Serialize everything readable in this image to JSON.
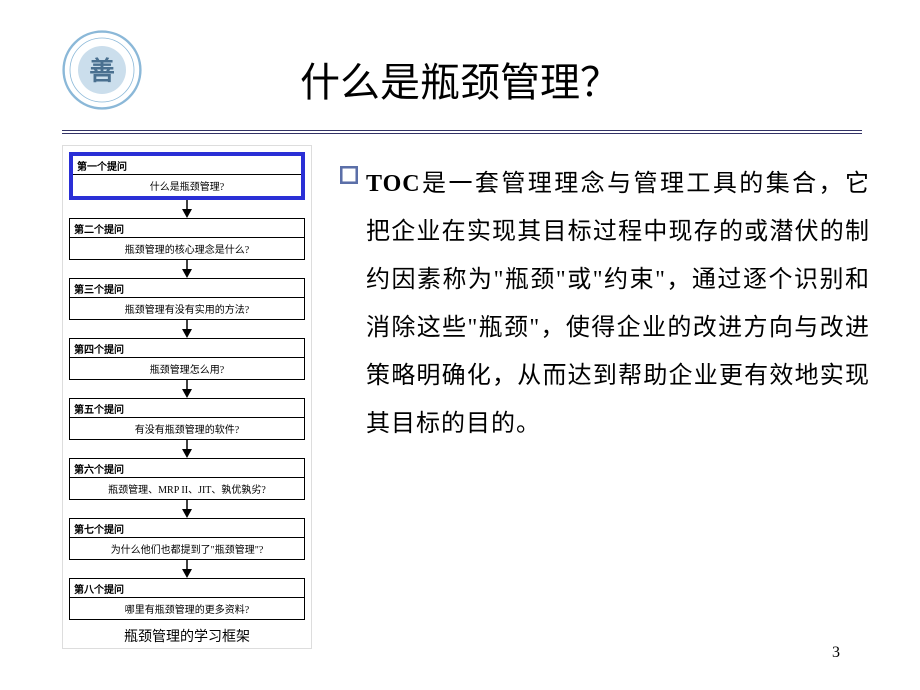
{
  "title": "什么是瓶颈管理？",
  "logo": {
    "ring_color": "#8bb8d8",
    "inner_color": "#6aa3c9"
  },
  "divider_color": "#333366",
  "flowchart": {
    "highlight_color": "#2a2fd6",
    "border_color": "#000000",
    "nodes": [
      {
        "header": "第一个提问",
        "body": "什么是瓶颈管理?",
        "highlight": true
      },
      {
        "header": "第二个提问",
        "body": "瓶颈管理的核心理念是什么?",
        "highlight": false
      },
      {
        "header": "第三个提问",
        "body": "瓶颈管理有没有实用的方法?",
        "highlight": false
      },
      {
        "header": "第四个提问",
        "body": "瓶颈管理怎么用?",
        "highlight": false
      },
      {
        "header": "第五个提问",
        "body": "有没有瓶颈管理的软件?",
        "highlight": false
      },
      {
        "header": "第六个提问",
        "body": "瓶颈管理、MRP II、JIT、孰优孰劣?",
        "highlight": false
      },
      {
        "header": "第七个提问",
        "body": "为什么他们也都提到了\"瓶颈管理\"?",
        "highlight": false
      },
      {
        "header": "第八个提问",
        "body": "哪里有瓶颈管理的更多资料?",
        "highlight": false
      }
    ],
    "caption": "瓶颈管理的学习框架"
  },
  "body": {
    "bullet_color": "#5b6fa8",
    "toc_label": "TOC",
    "text": "是一套管理理念与管理工具的集合，它把企业在实现其目标过程中现存的或潜伏的制约因素称为\"瓶颈\"或\"约束\"，通过逐个识别和消除这些\"瓶颈\"，使得企业的改进方向与改进策略明确化，从而达到帮助企业更有效地实现其目标的目的。"
  },
  "page_number": "3"
}
